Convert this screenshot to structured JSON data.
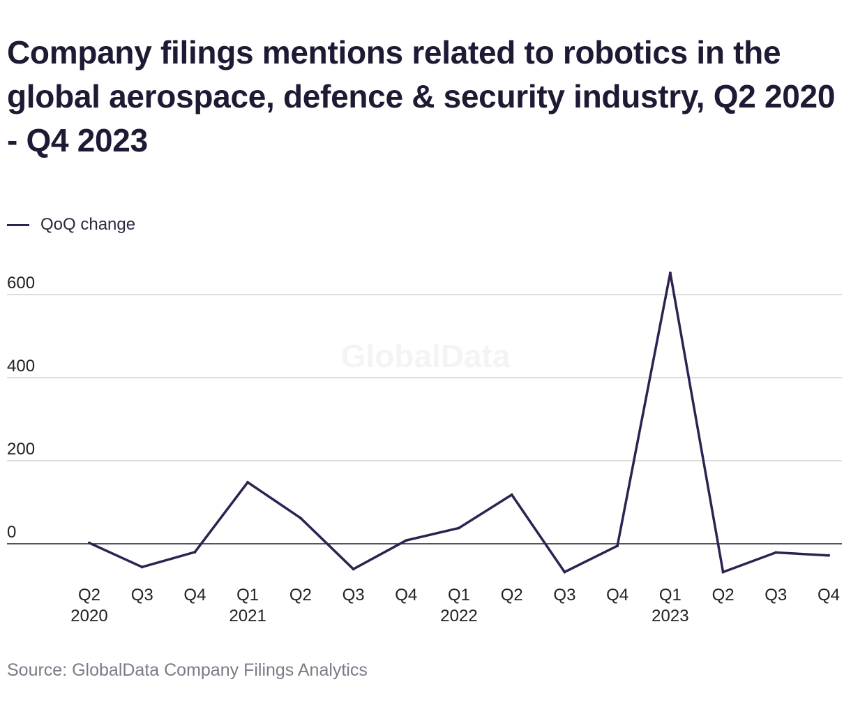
{
  "header": {
    "title": "Company filings mentions related to robotics in the global aerospace, defence & security industry, Q2 2020 - Q4 2023"
  },
  "legend": {
    "label": "QoQ change"
  },
  "watermark": "GlobalData",
  "footer": {
    "source": "Source: GlobalData Company Filings Analytics"
  },
  "colors": {
    "line": "#2f2150",
    "grid": "#d4d4d4",
    "zero_line": "#1c1a2e",
    "tick_text": "#222222",
    "watermark": "#f4f4f4"
  },
  "chart_data": {
    "type": "line",
    "title": "Company filings mentions related to robotics in the global aerospace, defence & security industry, Q2 2020 - Q4 2023",
    "categories": [
      "Q2 2020",
      "Q3 2020",
      "Q4 2020",
      "Q1 2021",
      "Q2 2021",
      "Q3 2021",
      "Q4 2021",
      "Q1 2022",
      "Q2 2022",
      "Q3 2022",
      "Q4 2022",
      "Q1 2023",
      "Q2 2023",
      "Q3 2023",
      "Q4 2023"
    ],
    "tick_labels": [
      {
        "quarter": "Q2",
        "year": "2020"
      },
      {
        "quarter": "Q3",
        "year": ""
      },
      {
        "quarter": "Q4",
        "year": ""
      },
      {
        "quarter": "Q1",
        "year": "2021"
      },
      {
        "quarter": "Q2",
        "year": ""
      },
      {
        "quarter": "Q3",
        "year": ""
      },
      {
        "quarter": "Q4",
        "year": ""
      },
      {
        "quarter": "Q1",
        "year": "2022"
      },
      {
        "quarter": "Q2",
        "year": ""
      },
      {
        "quarter": "Q3",
        "year": ""
      },
      {
        "quarter": "Q4",
        "year": ""
      },
      {
        "quarter": "Q1",
        "year": "2023"
      },
      {
        "quarter": "Q2",
        "year": ""
      },
      {
        "quarter": "Q3",
        "year": ""
      },
      {
        "quarter": "Q4",
        "year": ""
      }
    ],
    "series": [
      {
        "name": "QoQ change",
        "values": [
          2,
          -56,
          -20,
          148,
          62,
          -61,
          8,
          38,
          118,
          -68,
          -5,
          652,
          -68,
          -21,
          -28
        ]
      }
    ],
    "y_ticks": [
      0,
      200,
      400,
      600
    ],
    "ylim": [
      -90,
      660
    ],
    "grid": true,
    "legend_position": "top-left",
    "xlabel": "",
    "ylabel": ""
  }
}
